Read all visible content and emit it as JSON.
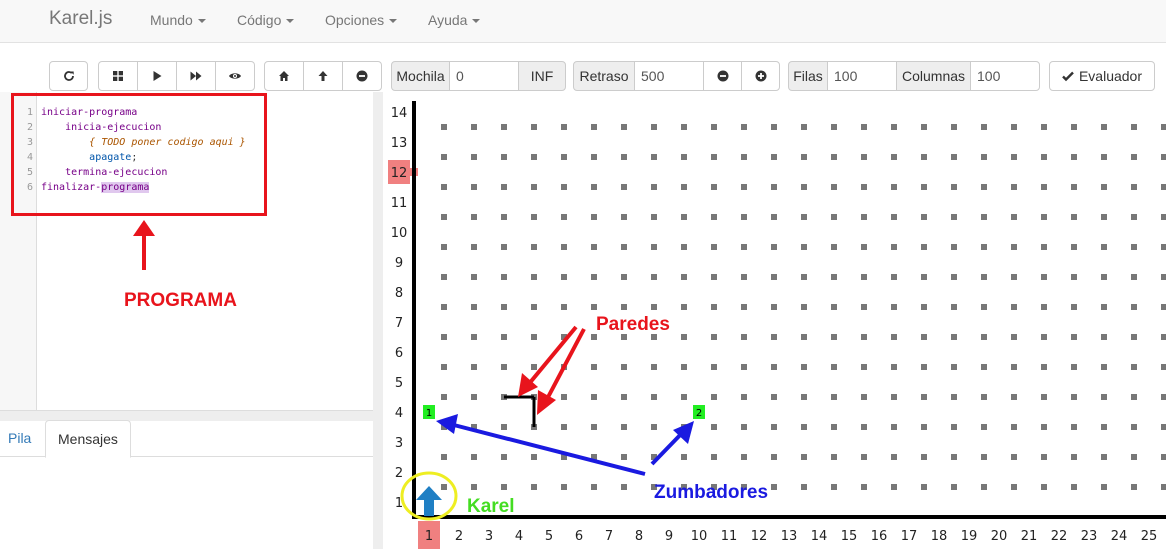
{
  "navbar": {
    "brand": "Karel.js",
    "menus": [
      "Mundo",
      "Código",
      "Opciones",
      "Ayuda"
    ]
  },
  "toolbar": {
    "mochila_label": "Mochila",
    "mochila_value": "0",
    "inf_label": "INF",
    "retraso_label": "Retraso",
    "retraso_value": "500",
    "filas_label": "Filas",
    "filas_value": "100",
    "columnas_label": "Columnas",
    "columnas_value": "100",
    "evaluador_label": "Evaluador",
    "icons": [
      "refresh-icon",
      "grid-icon",
      "play-icon",
      "fast-forward-icon",
      "eye-icon",
      "home-icon",
      "arrow-up-icon",
      "minus-circle-icon",
      "minus-circle-icon",
      "plus-circle-icon",
      "check-icon"
    ]
  },
  "editor": {
    "line_numbers": [
      "1",
      "2",
      "3",
      "4",
      "5",
      "6"
    ],
    "lines": [
      {
        "indent": "",
        "parts": [
          {
            "t": "iniciar-programa",
            "c": "kw"
          }
        ]
      },
      {
        "indent": "    ",
        "parts": [
          {
            "t": "inicia-ejecucion",
            "c": "kw"
          }
        ]
      },
      {
        "indent": "        ",
        "parts": [
          {
            "t": "{ TODO poner codigo aqui }",
            "c": "cm"
          }
        ]
      },
      {
        "indent": "        ",
        "parts": [
          {
            "t": "apagate",
            "c": "fn"
          },
          {
            "t": ";",
            "c": ""
          }
        ]
      },
      {
        "indent": "    ",
        "parts": [
          {
            "t": "termina-ejecucion",
            "c": "kw"
          }
        ]
      },
      {
        "indent": "",
        "parts": [
          {
            "t": "finalizar-",
            "c": "kw"
          },
          {
            "t": "programa",
            "c": "kw hl"
          }
        ]
      }
    ]
  },
  "tabs": [
    "Pila",
    "Mensajes"
  ],
  "active_tab": "Mensajes",
  "world": {
    "row_labels": [
      "14",
      "13",
      "12",
      "11",
      "10",
      "9",
      "8",
      "7",
      "6",
      "5",
      "4",
      "3",
      "2",
      "1"
    ],
    "col_labels": [
      "1",
      "2",
      "3",
      "4",
      "5",
      "6",
      "7",
      "8",
      "9",
      "10",
      "11",
      "12",
      "13",
      "14",
      "15",
      "16",
      "17",
      "18",
      "19",
      "20",
      "21",
      "22",
      "23",
      "24",
      "25"
    ],
    "highlighted_row": "12",
    "highlighted_col": "1",
    "beepers": [
      {
        "row": 4,
        "col": 1,
        "count": "1"
      },
      {
        "row": 4,
        "col": 10,
        "count": "2"
      }
    ],
    "karel": {
      "row": 1,
      "col": 1,
      "facing": "north"
    }
  },
  "annotations": {
    "programa": "PROGRAMA",
    "paredes": "Paredes",
    "zumbadores": "Zumbadores",
    "karel": "Karel"
  },
  "colors": {
    "annotation_red": "#e8141c",
    "annotation_blue": "#1a1ae0",
    "annotation_green": "#44dd22",
    "karel_blue": "#1f7fc4",
    "beeper_green": "#22ee22",
    "highlight_red": "#f08080"
  }
}
